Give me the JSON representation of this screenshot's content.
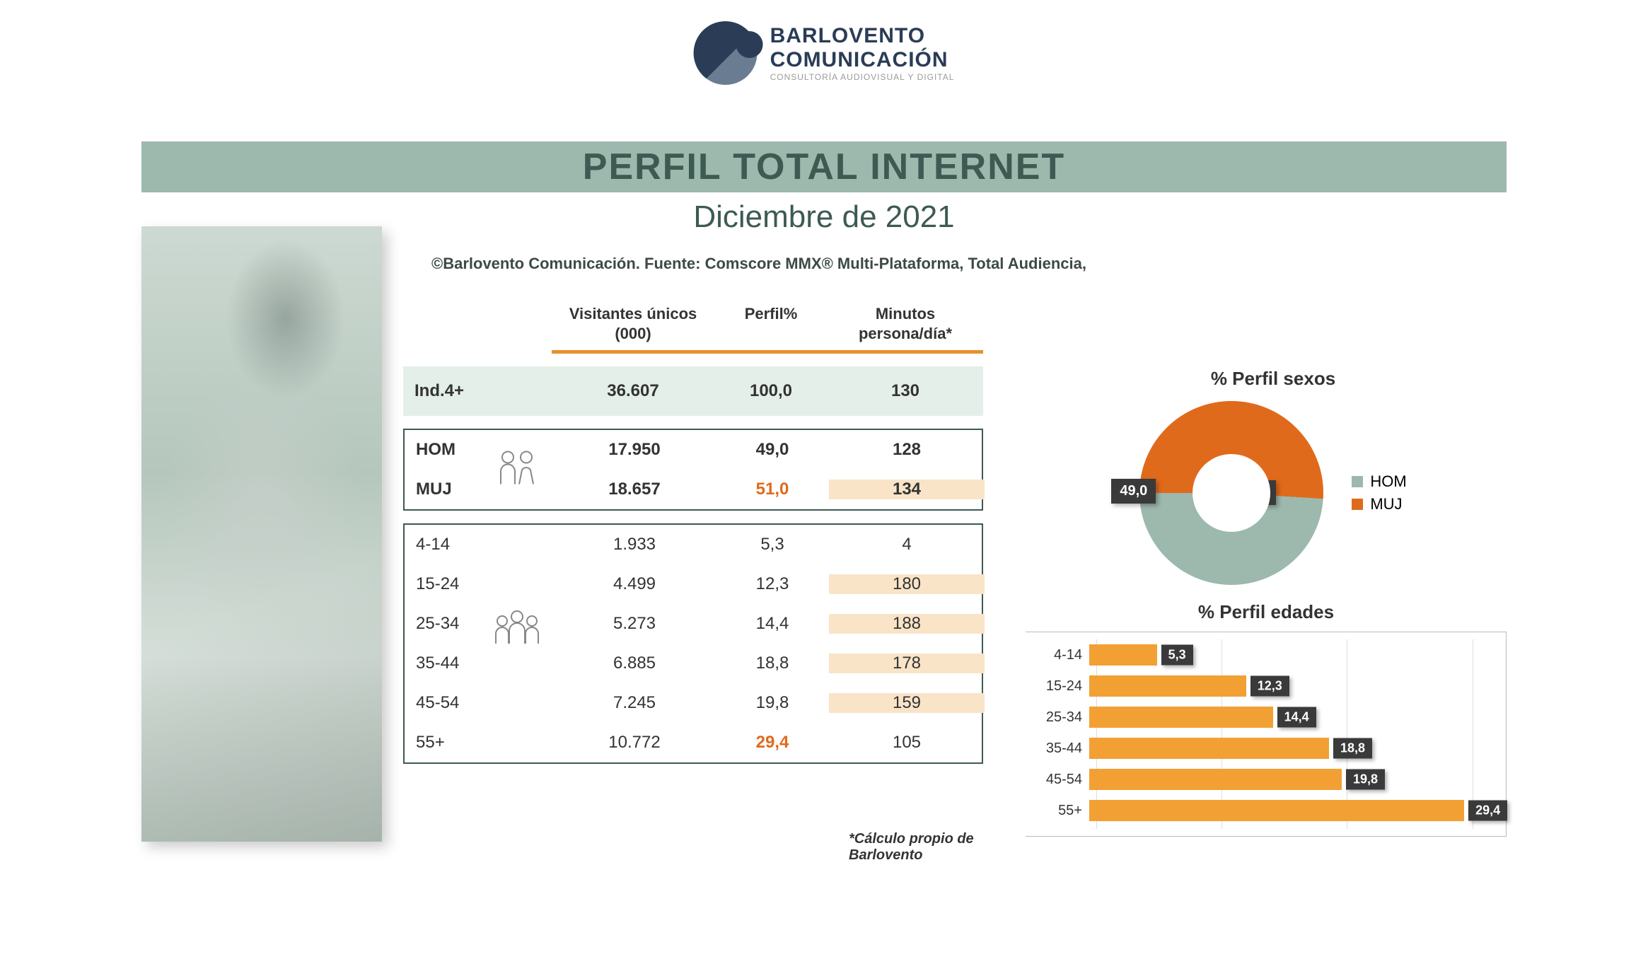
{
  "logo": {
    "line1": "BARLOVENTO",
    "line2": "COMUNICACIÓN",
    "line3": "CONSULTORÍA AUDIOVISUAL Y DIGITAL"
  },
  "banner_title": "PERFIL TOTAL INTERNET",
  "banner_color": "#9db8ac",
  "banner_text_color": "#3d5a53",
  "subtitle": "Diciembre de 2021",
  "source_line": "©Barlovento Comunicación. Fuente: Comscore MMX® Multi-Plataforma, Total Audiencia,",
  "table": {
    "headers": {
      "col2": "Visitantes únicos (000)",
      "col3": "Perfil%",
      "col4": "Minutos persona/día*"
    },
    "underline_color": "#e98f2f",
    "total_row": {
      "label": "Ind.4+",
      "visitors": "36.607",
      "perfil": "100,0",
      "min": "130"
    },
    "gender_rows": [
      {
        "label": "HOM",
        "visitors": "17.950",
        "perfil": "49,0",
        "min": "128",
        "hl_perfil": false,
        "hl_min": false
      },
      {
        "label": "MUJ",
        "visitors": "18.657",
        "perfil": "51,0",
        "min": "134",
        "hl_perfil": true,
        "hl_min": true
      }
    ],
    "age_rows": [
      {
        "label": "4-14",
        "visitors": "1.933",
        "perfil": "5,3",
        "min": "4",
        "hl_perfil": false,
        "hl_min": false
      },
      {
        "label": "15-24",
        "visitors": "4.499",
        "perfil": "12,3",
        "min": "180",
        "hl_perfil": false,
        "hl_min": true
      },
      {
        "label": "25-34",
        "visitors": "5.273",
        "perfil": "14,4",
        "min": "188",
        "hl_perfil": false,
        "hl_min": true
      },
      {
        "label": "35-44",
        "visitors": "6.885",
        "perfil": "18,8",
        "min": "178",
        "hl_perfil": false,
        "hl_min": true
      },
      {
        "label": "45-54",
        "visitors": "7.245",
        "perfil": "19,8",
        "min": "159",
        "hl_perfil": false,
        "hl_min": true
      },
      {
        "label": "55+",
        "visitors": "10.772",
        "perfil": "29,4",
        "min": "105",
        "hl_perfil": true,
        "hl_min": false
      }
    ],
    "highlight_text_color": "#e06a1c",
    "highlight_bg_color": "#f9e4c8",
    "border_color": "#3d5a53"
  },
  "footnote": "*Cálculo propio de Barlovento",
  "donut": {
    "title": "% Perfil sexos",
    "slices": [
      {
        "label": "HOM",
        "value": 49.0,
        "display": "49,0",
        "color": "#9db8ac"
      },
      {
        "label": "MUJ",
        "value": 51.0,
        "display": "51,0",
        "color": "#e06a1c"
      }
    ],
    "label_bg": "#3a3a3a",
    "label_text": "#ffffff",
    "legend_marker_hom": "#9db8ac",
    "legend_marker_muj": "#e06a1c"
  },
  "barchart": {
    "title": "% Perfil edades",
    "xmax": 32,
    "gridlines_at": [
      0,
      10,
      20,
      30
    ],
    "bar_color": "#f2a034",
    "label_bg": "#3a3a3a",
    "bars": [
      {
        "cat": "4-14",
        "value": 5.3,
        "display": "5,3"
      },
      {
        "cat": "15-24",
        "value": 12.3,
        "display": "12,3"
      },
      {
        "cat": "25-34",
        "value": 14.4,
        "display": "14,4"
      },
      {
        "cat": "35-44",
        "value": 18.8,
        "display": "18,8"
      },
      {
        "cat": "45-54",
        "value": 19.8,
        "display": "19,8"
      },
      {
        "cat": "55+",
        "value": 29.4,
        "display": "29,4"
      }
    ]
  }
}
